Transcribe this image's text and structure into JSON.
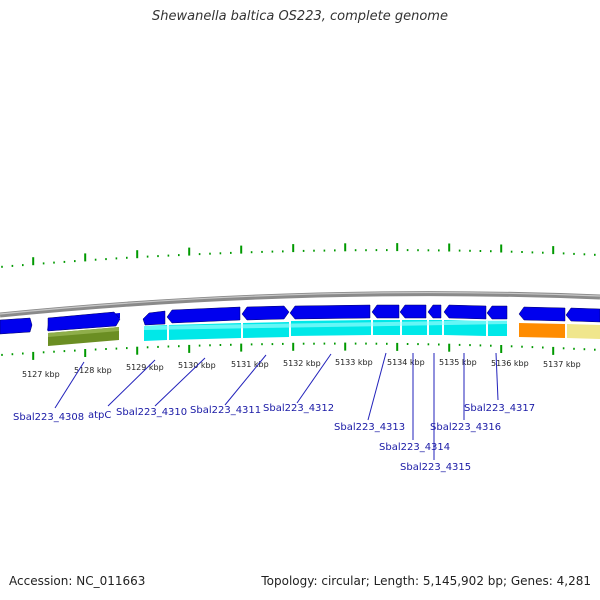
{
  "header": {
    "title": "Shewanella baltica OS223, complete genome"
  },
  "footer": {
    "accession": "Accession: NC_011663",
    "summary": "Topology: circular; Length: 5,145,902 bp; Genes: 4,281"
  },
  "colors": {
    "backbone": "#808080",
    "forward_gene": "#0000ee",
    "forward_gene_light": "#4a4aff",
    "reverse_gene_cds": "#00e8e8",
    "olive_gene": "#6b8e23",
    "orange_gene": "#ff8c00",
    "pale_gene": "#f0e68c",
    "tick_green": "#009900",
    "label_blue": "#1a1aa6"
  },
  "scale_labels": [
    "5127 kbp",
    "5128 kbp",
    "5129 kbp",
    "5130 kbp",
    "5131 kbp",
    "5132 kbp",
    "5133 kbp",
    "5134 kbp",
    "5135 kbp",
    "5136 kbp",
    "5137 kbp"
  ],
  "gene_labels": [
    "Sbal223_4308",
    "atpC",
    "Sbal223_4310",
    "Sbal223_4311",
    "Sbal223_4312",
    "Sbal223_4313",
    "Sbal223_4314",
    "Sbal223_4315",
    "Sbal223_4316",
    "Sbal223_4317"
  ]
}
